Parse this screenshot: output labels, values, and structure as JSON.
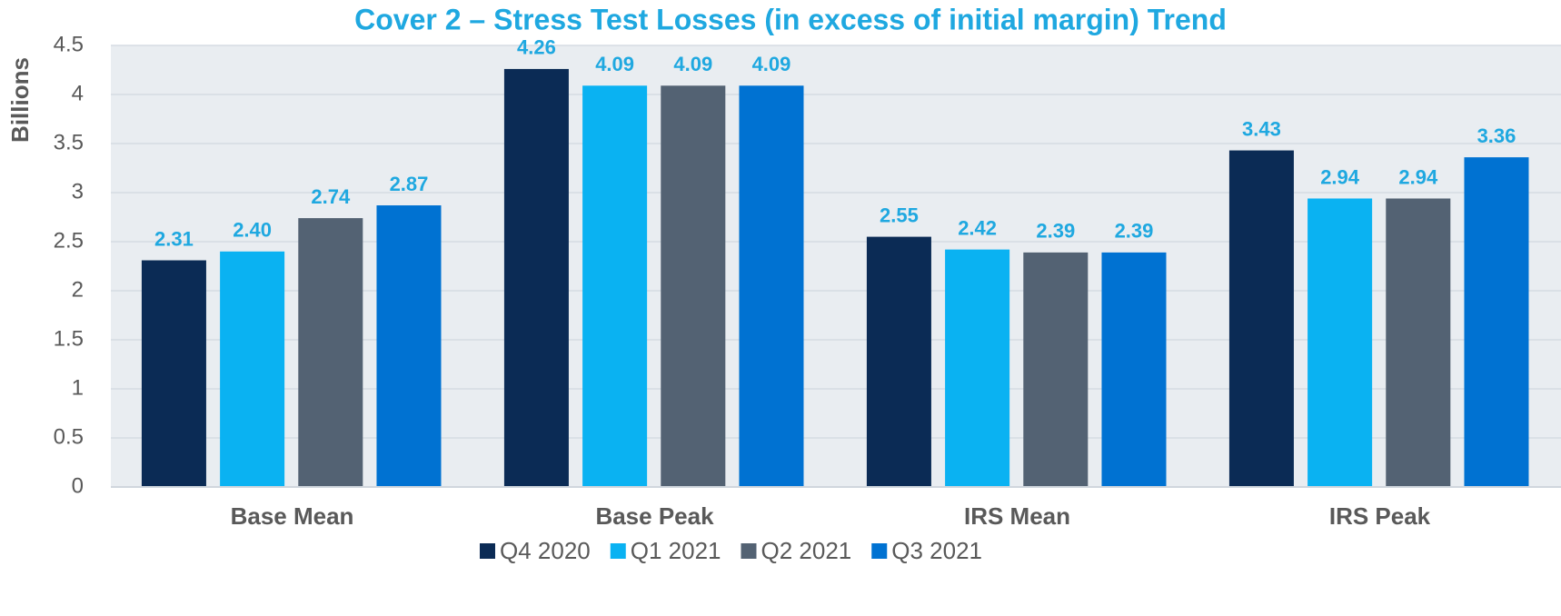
{
  "chart_data": {
    "type": "bar",
    "title": "Cover 2 – Stress Test Losses (in excess of initial margin) Trend",
    "y_label": "Billions",
    "categories": [
      "Base Mean",
      "Base Peak",
      "IRS Mean",
      "IRS Peak"
    ],
    "series": [
      {
        "name": "Q4 2020",
        "color": "#0b2b55",
        "values": [
          2.31,
          4.26,
          2.55,
          3.43
        ],
        "value_labels": [
          "2.31",
          "4.26",
          "2.55",
          "3.43"
        ]
      },
      {
        "name": "Q1 2021",
        "color": "#0ab2f2",
        "values": [
          2.4,
          4.09,
          2.42,
          2.94
        ],
        "value_labels": [
          "2.40",
          "4.09",
          "2.42",
          "2.94"
        ]
      },
      {
        "name": "Q2 2021",
        "color": "#536273",
        "values": [
          2.74,
          4.09,
          2.39,
          2.94
        ],
        "value_labels": [
          "2.74",
          "4.09",
          "2.39",
          "2.94"
        ]
      },
      {
        "name": "Q3 2021",
        "color": "#0072d2",
        "values": [
          2.87,
          4.09,
          2.39,
          3.36
        ],
        "value_labels": [
          "2.87",
          "4.09",
          "2.39",
          "3.36"
        ]
      }
    ],
    "ylim": [
      0,
      4.5
    ],
    "yticks": [
      0,
      0.5,
      1,
      1.5,
      2,
      2.5,
      3,
      3.5,
      4,
      4.5
    ],
    "grid": true,
    "legend": "bottom"
  }
}
